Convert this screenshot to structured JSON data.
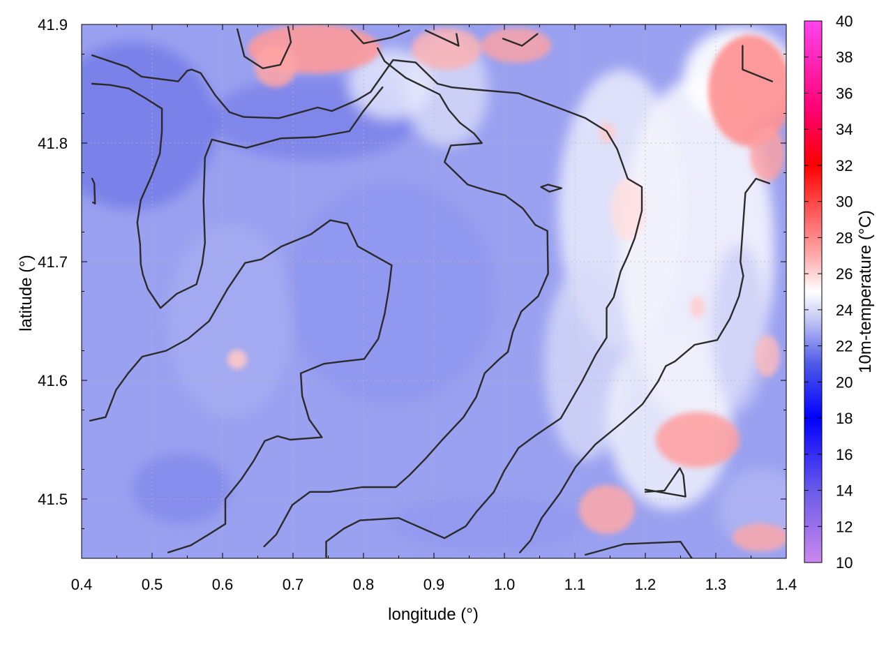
{
  "chart_data": {
    "type": "heatmap",
    "title": "",
    "xlabel": "longitude (°)",
    "ylabel": "latitude (°)",
    "colorbar_label": "10m-temperature (°C)",
    "xlim": [
      0.4,
      1.4
    ],
    "ylim": [
      41.45,
      41.9
    ],
    "x_ticks": [
      "0.4",
      "0.5",
      "0.6",
      "0.7",
      "0.8",
      "0.9",
      "1.0",
      "1.1",
      "1.2",
      "1.3",
      "1.4"
    ],
    "y_ticks": [
      "41.5",
      "41.6",
      "41.7",
      "41.8",
      "41.9"
    ],
    "colorbar_range": [
      10,
      40
    ],
    "colorbar_ticks": [
      "10",
      "12",
      "14",
      "16",
      "18",
      "20",
      "22",
      "24",
      "26",
      "28",
      "30",
      "32",
      "34",
      "36",
      "38",
      "40"
    ],
    "colormap": [
      {
        "value": 10,
        "color": "#cc88ee"
      },
      {
        "value": 14,
        "color": "#6a5ae8"
      },
      {
        "value": 18,
        "color": "#0000ff"
      },
      {
        "value": 21,
        "color": "#4e5ae6"
      },
      {
        "value": 22,
        "color": "#7d86ec"
      },
      {
        "value": 23.5,
        "color": "#c6c9f4"
      },
      {
        "value": 25,
        "color": "#ffffff"
      },
      {
        "value": 27,
        "color": "#ffaaaa"
      },
      {
        "value": 29,
        "color": "#ff6868"
      },
      {
        "value": 32,
        "color": "#ff0000"
      },
      {
        "value": 35,
        "color": "#ff0070"
      },
      {
        "value": 40,
        "color": "#ff44ee"
      }
    ],
    "grid": true,
    "contours": [
      [
        [
          0.415,
          41.874
        ],
        [
          0.465,
          41.864
        ],
        [
          0.485,
          41.856
        ],
        [
          0.537,
          41.852
        ],
        [
          0.55,
          41.861
        ],
        [
          0.556,
          41.862
        ],
        [
          0.569,
          41.859
        ],
        [
          0.59,
          41.84
        ],
        [
          0.61,
          41.826
        ],
        [
          0.63,
          41.822
        ],
        [
          0.68,
          41.821
        ],
        [
          0.735,
          41.83
        ],
        [
          0.755,
          41.827
        ],
        [
          0.79,
          41.836
        ],
        [
          0.81,
          41.843
        ],
        [
          0.842,
          41.87
        ],
        [
          0.874,
          41.868
        ],
        [
          0.905,
          41.85
        ],
        [
          0.925,
          41.847
        ],
        [
          0.96,
          41.845
        ],
        [
          1.02,
          41.842
        ],
        [
          1.08,
          41.829
        ],
        [
          1.115,
          41.821
        ],
        [
          1.145,
          41.81
        ],
        [
          1.16,
          41.795
        ],
        [
          1.175,
          41.77
        ],
        [
          1.195,
          41.763
        ],
        [
          1.195,
          41.743
        ],
        [
          1.185,
          41.72
        ],
        [
          1.175,
          41.705
        ],
        [
          1.165,
          41.692
        ],
        [
          1.155,
          41.67
        ],
        [
          1.145,
          41.661
        ],
        [
          1.145,
          41.636
        ],
        [
          1.13,
          41.622
        ],
        [
          1.11,
          41.599
        ],
        [
          1.08,
          41.568
        ],
        [
          1.045,
          41.554
        ],
        [
          1.02,
          41.543
        ],
        [
          1.0,
          41.524
        ],
        [
          0.985,
          41.506
        ],
        [
          0.96,
          41.489
        ],
        [
          0.945,
          41.477
        ],
        [
          0.915,
          41.467
        ],
        [
          0.85,
          41.484
        ],
        [
          0.795,
          41.482
        ],
        [
          0.772,
          41.475
        ],
        [
          0.747,
          41.464
        ],
        [
          0.747,
          41.451
        ]
      ],
      [
        [
          0.415,
          41.85
        ],
        [
          0.44,
          41.849
        ],
        [
          0.467,
          41.846
        ],
        [
          0.49,
          41.838
        ],
        [
          0.514,
          41.829
        ],
        [
          0.514,
          41.81
        ],
        [
          0.511,
          41.791
        ],
        [
          0.499,
          41.772
        ],
        [
          0.484,
          41.752
        ],
        [
          0.479,
          41.733
        ],
        [
          0.483,
          41.715
        ],
        [
          0.484,
          41.698
        ],
        [
          0.487,
          41.689
        ],
        [
          0.494,
          41.677
        ],
        [
          0.512,
          41.661
        ],
        [
          0.535,
          41.673
        ],
        [
          0.563,
          41.681
        ],
        [
          0.571,
          41.698
        ],
        [
          0.575,
          41.716
        ],
        [
          0.573,
          41.751
        ],
        [
          0.575,
          41.788
        ],
        [
          0.585,
          41.803
        ],
        [
          0.611,
          41.799
        ],
        [
          0.634,
          41.796
        ],
        [
          0.683,
          41.804
        ],
        [
          0.733,
          41.805
        ],
        [
          0.78,
          41.81
        ],
        [
          0.8,
          41.827
        ],
        [
          0.827,
          41.847
        ]
      ],
      [
        [
          0.412,
          41.566
        ],
        [
          0.434,
          41.569
        ],
        [
          0.449,
          41.592
        ],
        [
          0.466,
          41.606
        ],
        [
          0.486,
          41.62
        ],
        [
          0.52,
          41.625
        ],
        [
          0.551,
          41.635
        ],
        [
          0.581,
          41.65
        ],
        [
          0.607,
          41.677
        ],
        [
          0.632,
          41.699
        ],
        [
          0.655,
          41.702
        ],
        [
          0.684,
          41.713
        ],
        [
          0.725,
          41.723
        ],
        [
          0.753,
          41.735
        ],
        [
          0.777,
          41.732
        ],
        [
          0.792,
          41.713
        ],
        [
          0.84,
          41.697
        ],
        [
          0.836,
          41.677
        ],
        [
          0.83,
          41.656
        ],
        [
          0.821,
          41.635
        ],
        [
          0.801,
          41.618
        ],
        [
          0.771,
          41.616
        ],
        [
          0.744,
          41.614
        ],
        [
          0.711,
          41.606
        ],
        [
          0.713,
          41.587
        ],
        [
          0.723,
          41.567
        ],
        [
          0.741,
          41.552
        ],
        [
          0.696,
          41.55
        ],
        [
          0.678,
          41.553
        ],
        [
          0.66,
          41.549
        ],
        [
          0.644,
          41.532
        ],
        [
          0.627,
          41.517
        ],
        [
          0.604,
          41.5
        ],
        [
          0.604,
          41.479
        ],
        [
          0.58,
          41.47
        ],
        [
          0.555,
          41.461
        ],
        [
          0.523,
          41.455
        ]
      ],
      [
        [
          0.659,
          41.46
        ],
        [
          0.676,
          41.47
        ],
        [
          0.699,
          41.495
        ],
        [
          0.724,
          41.506
        ],
        [
          0.752,
          41.506
        ],
        [
          0.798,
          41.51
        ],
        [
          0.846,
          41.51
        ],
        [
          0.865,
          41.52
        ],
        [
          0.888,
          41.534
        ],
        [
          0.912,
          41.55
        ],
        [
          0.942,
          41.569
        ],
        [
          0.96,
          41.586
        ],
        [
          0.972,
          41.606
        ],
        [
          0.993,
          41.618
        ],
        [
          1.005,
          41.624
        ],
        [
          1.012,
          41.641
        ],
        [
          1.024,
          41.658
        ],
        [
          1.048,
          41.671
        ],
        [
          1.062,
          41.69
        ],
        [
          1.061,
          41.726
        ],
        [
          1.044,
          41.731
        ],
        [
          1.026,
          41.745
        ],
        [
          1.001,
          41.756
        ],
        [
          0.975,
          41.76
        ],
        [
          0.948,
          41.765
        ],
        [
          0.915,
          41.784
        ],
        [
          0.924,
          41.798
        ],
        [
          0.949,
          41.799
        ],
        [
          0.968,
          41.8
        ],
        [
          0.957,
          41.808
        ],
        [
          0.937,
          41.817
        ],
        [
          0.921,
          41.828
        ],
        [
          0.908,
          41.841
        ],
        [
          0.86,
          41.855
        ],
        [
          0.83,
          41.869
        ],
        [
          0.82,
          41.88
        ]
      ],
      [
        [
          1.022,
          41.455
        ],
        [
          1.037,
          41.465
        ],
        [
          1.053,
          41.484
        ],
        [
          1.079,
          41.505
        ],
        [
          1.101,
          41.527
        ],
        [
          1.129,
          41.546
        ],
        [
          1.168,
          41.565
        ],
        [
          1.196,
          41.58
        ],
        [
          1.218,
          41.599
        ],
        [
          1.229,
          41.612
        ],
        [
          1.242,
          41.616
        ],
        [
          1.27,
          41.63
        ],
        [
          1.302,
          41.634
        ],
        [
          1.32,
          41.652
        ],
        [
          1.333,
          41.671
        ],
        [
          1.339,
          41.688
        ],
        [
          1.335,
          41.7
        ],
        [
          1.342,
          41.758
        ],
        [
          1.357,
          41.77
        ],
        [
          1.376,
          41.766
        ]
      ],
      [
        [
          1.115,
          41.453
        ],
        [
          1.17,
          41.462
        ],
        [
          1.25,
          41.464
        ],
        [
          1.266,
          41.45
        ]
      ],
      [
        [
          1.2,
          41.506
        ],
        [
          1.227,
          41.507
        ],
        [
          1.249,
          41.526
        ],
        [
          1.254,
          41.52
        ],
        [
          1.257,
          41.502
        ],
        [
          1.2,
          41.508
        ]
      ],
      [
        [
          1.062,
          41.765
        ],
        [
          1.081,
          41.762
        ],
        [
          1.064,
          41.759
        ],
        [
          1.052,
          41.763
        ],
        [
          1.062,
          41.765
        ]
      ],
      [
        [
          1.338,
          41.882
        ],
        [
          1.338,
          41.862
        ],
        [
          1.38,
          41.852
        ]
      ],
      [
        [
          0.621,
          41.896
        ],
        [
          0.631,
          41.873
        ],
        [
          0.657,
          41.863
        ],
        [
          0.682,
          41.866
        ],
        [
          0.697,
          41.885
        ],
        [
          0.693,
          41.898
        ]
      ],
      [
        [
          0.783,
          41.895
        ],
        [
          0.8,
          41.884
        ],
        [
          0.84,
          41.889
        ],
        [
          0.865,
          41.895
        ]
      ],
      [
        [
          0.888,
          41.895
        ],
        [
          0.935,
          41.882
        ],
        [
          0.932,
          41.892
        ]
      ],
      [
        [
          0.998,
          41.888
        ],
        [
          1.025,
          41.882
        ],
        [
          1.047,
          41.892
        ]
      ],
      [
        [
          0.415,
          41.77
        ],
        [
          0.418,
          41.766
        ],
        [
          0.419,
          41.749
        ],
        [
          0.416,
          41.75
        ]
      ]
    ]
  }
}
